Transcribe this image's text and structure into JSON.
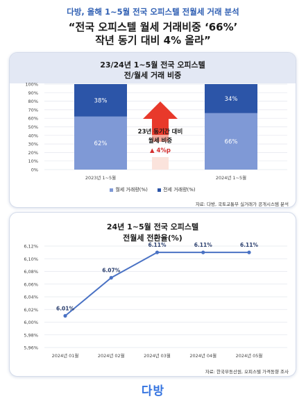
{
  "header": {
    "subtitle": "다방, 올해 1~5월 전국 오피스텔 전월세 거래 분석",
    "headline_1": "“전국 오피스텔 월세 거래비중 ‘66%’",
    "headline_2": "작년 동기 대비 4% 올라”"
  },
  "colors": {
    "monthly": "#7f99d6",
    "jeonse": "#2c55a8",
    "line": "#4a72c4",
    "arrow": "#e8392b"
  },
  "chart1": {
    "title_1": "23/24년 1~5월 전국 오피스텔",
    "title_2": "전/월세 거래 비중",
    "callout_1": "23년 동기간 대비",
    "callout_2": "월세 비중",
    "callout_3": "▲ 4%p",
    "legend_monthly": "월세 거래량(%)",
    "legend_jeonse": "전세 거래량(%)",
    "source": "자료: 다방, 국토교통부 실거래가 공개시스템 분석"
  },
  "chart2": {
    "title_1": "24년 1~5월 전국 오피스텔",
    "title_2": "전월세 전환율(%)",
    "source": "자료: 한국부동산원, 오피스텔 가격동향 조사"
  },
  "logo": "다방",
  "chart_data": [
    {
      "type": "bar",
      "stacked": true,
      "categories": [
        "2023년 1~5월",
        "2024년 1~5월"
      ],
      "series": [
        {
          "name": "월세 거래량(%)",
          "values": [
            62,
            66
          ],
          "labels": [
            "62%",
            "66%"
          ]
        },
        {
          "name": "전세 거래량(%)",
          "values": [
            38,
            34
          ],
          "labels": [
            "38%",
            "34%"
          ]
        }
      ],
      "ylim": [
        0,
        100
      ],
      "yticks": [
        "0%",
        "10%",
        "20%",
        "30%",
        "40%",
        "50%",
        "60%",
        "70%",
        "80%",
        "90%",
        "100%"
      ],
      "grid": true,
      "legend": "bottom"
    },
    {
      "type": "line",
      "categories": [
        "2024년 01월",
        "2024년 02월",
        "2024년 03월",
        "2024년 04월",
        "2024년 05월"
      ],
      "values": [
        6.01,
        6.07,
        6.11,
        6.11,
        6.11
      ],
      "labels": [
        "6.01%",
        "6.07%",
        "6.11%",
        "6.11%",
        "6.11%"
      ],
      "ylim": [
        5.96,
        6.12
      ],
      "yticks": [
        "5,96%",
        "5,98%",
        "6,00%",
        "6,02%",
        "6,04%",
        "6,06%",
        "6,08%",
        "6,10%",
        "6,12%"
      ],
      "grid": true
    }
  ]
}
